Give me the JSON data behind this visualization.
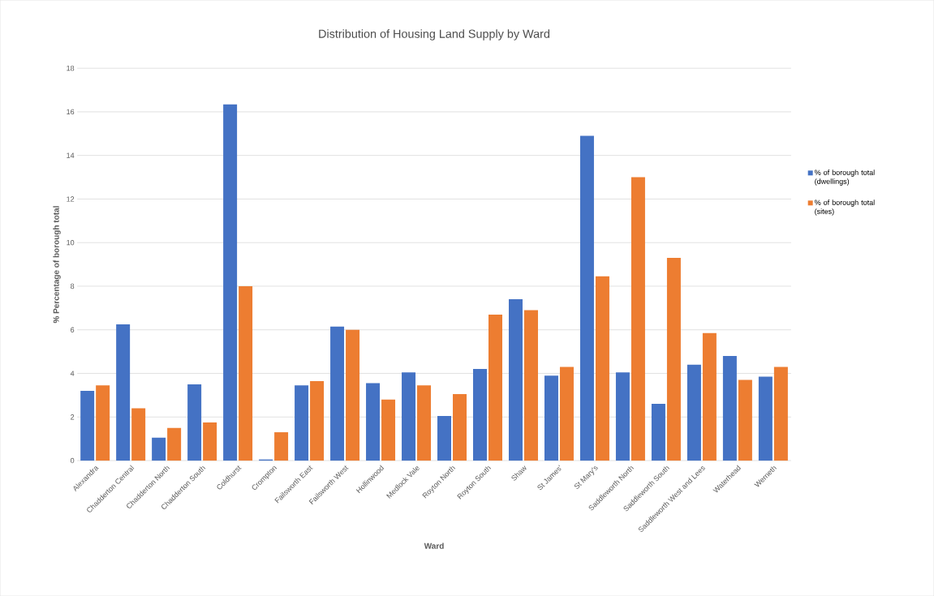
{
  "chart_data": {
    "type": "bar",
    "title": "Distribution of Housing Land Supply by Ward",
    "xlabel": "Ward",
    "ylabel": "% Percentage of borough total",
    "categories": [
      "Alexandra",
      "Chadderton Central",
      "Chadderton North",
      "Chadderton South",
      "Coldhurst",
      "Crompton",
      "Failsworth East",
      "Failsworth West",
      "Hollinwood",
      "Medlock Vale",
      "Royton North",
      "Royton South",
      "Shaw",
      "St James'",
      "St Mary's",
      "Saddleworth North",
      "Saddleworth South",
      "Saddleworth West and Lees",
      "Waterhead",
      "Werneth"
    ],
    "series": [
      {
        "name": "% of borough total (dwellings)",
        "color": "#4472c4",
        "values": [
          3.2,
          6.25,
          1.05,
          3.5,
          16.35,
          0.05,
          3.45,
          6.15,
          3.55,
          4.05,
          2.05,
          4.2,
          7.4,
          3.9,
          14.9,
          4.05,
          2.6,
          4.4,
          4.8,
          3.85
        ]
      },
      {
        "name": "% of borough total (sites)",
        "color": "#ed7d31",
        "values": [
          3.45,
          2.4,
          1.5,
          1.75,
          8.0,
          1.3,
          3.65,
          6.0,
          2.8,
          3.45,
          3.05,
          6.7,
          6.9,
          4.3,
          8.45,
          13.0,
          9.3,
          5.85,
          3.7,
          4.3
        ]
      }
    ],
    "ylim": [
      0,
      18
    ],
    "yticks": [
      0,
      2,
      4,
      6,
      8,
      10,
      12,
      14,
      16,
      18
    ],
    "grid": "y",
    "legend": "right"
  }
}
